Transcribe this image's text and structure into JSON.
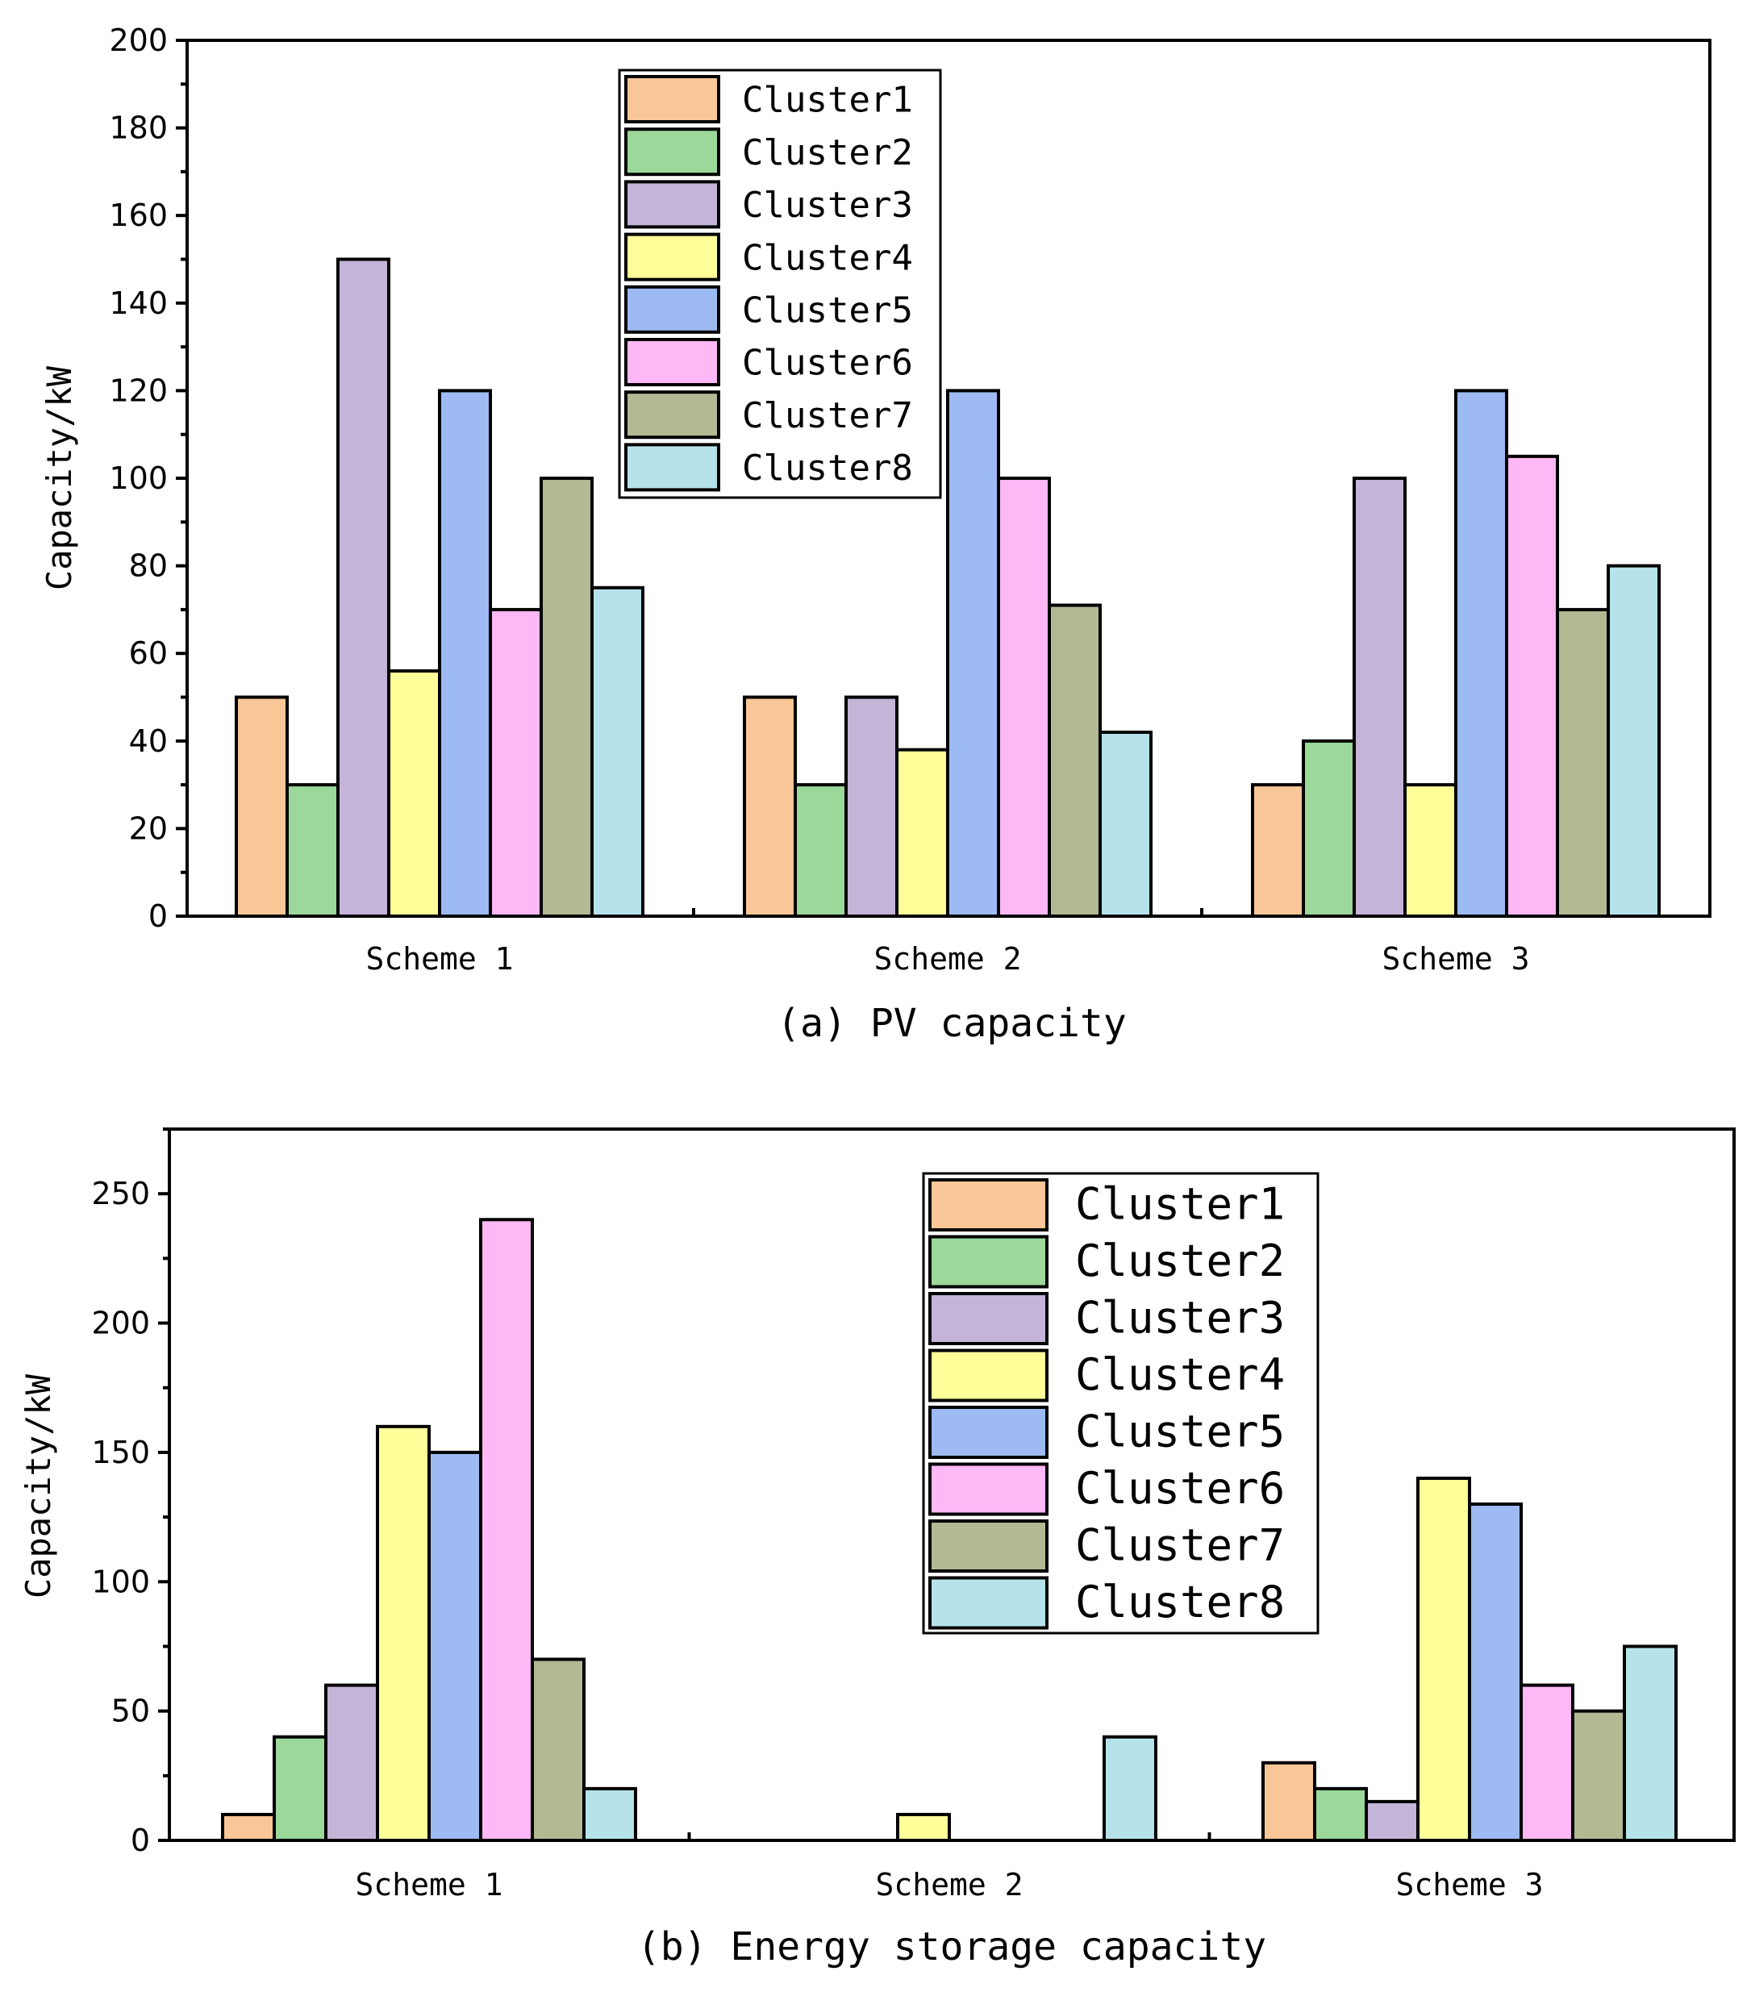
{
  "chart_data": [
    {
      "type": "bar",
      "caption": "(a) PV capacity",
      "ylabel": "Capacity/kW",
      "ylim": [
        0,
        200
      ],
      "yticks": [
        0,
        20,
        40,
        60,
        80,
        100,
        120,
        140,
        160,
        180,
        200
      ],
      "legend_position": "top-center",
      "categories": [
        "Scheme 1",
        "Scheme 2",
        "Scheme 3"
      ],
      "series": [
        {
          "name": "Cluster1",
          "color": "#F9C797",
          "values": [
            50,
            50,
            30
          ]
        },
        {
          "name": "Cluster2",
          "color": "#9BD89A",
          "values": [
            30,
            30,
            40
          ]
        },
        {
          "name": "Cluster3",
          "color": "#C4B4D8",
          "values": [
            150,
            50,
            100
          ]
        },
        {
          "name": "Cluster4",
          "color": "#FFFF99",
          "values": [
            56,
            38,
            30
          ]
        },
        {
          "name": "Cluster5",
          "color": "#9DBBF2",
          "values": [
            120,
            120,
            120
          ]
        },
        {
          "name": "Cluster6",
          "color": "#FDB8F5",
          "values": [
            70,
            100,
            105
          ]
        },
        {
          "name": "Cluster7",
          "color": "#B2B993",
          "values": [
            100,
            71,
            70
          ]
        },
        {
          "name": "Cluster8",
          "color": "#B6E3E9",
          "values": [
            75,
            42,
            80
          ]
        }
      ]
    },
    {
      "type": "bar",
      "caption": "(b) Energy storage capacity",
      "ylabel": "Capacity/kW",
      "ylim": [
        0,
        275
      ],
      "yticks": [
        0,
        50,
        100,
        150,
        200,
        250
      ],
      "legend_position": "top-right",
      "categories": [
        "Scheme 1",
        "Scheme 2",
        "Scheme 3"
      ],
      "series": [
        {
          "name": "Cluster1",
          "color": "#F9C797",
          "values": [
            10,
            0,
            30
          ]
        },
        {
          "name": "Cluster2",
          "color": "#9BD89A",
          "values": [
            40,
            0,
            20
          ]
        },
        {
          "name": "Cluster3",
          "color": "#C4B4D8",
          "values": [
            60,
            0,
            15
          ]
        },
        {
          "name": "Cluster4",
          "color": "#FFFF99",
          "values": [
            160,
            10,
            140
          ]
        },
        {
          "name": "Cluster5",
          "color": "#9DBBF2",
          "values": [
            150,
            0,
            130
          ]
        },
        {
          "name": "Cluster6",
          "color": "#FDB8F5",
          "values": [
            240,
            0,
            60
          ]
        },
        {
          "name": "Cluster7",
          "color": "#B2B993",
          "values": [
            70,
            0,
            50
          ]
        },
        {
          "name": "Cluster8",
          "color": "#B6E3E9",
          "values": [
            20,
            40,
            75
          ]
        }
      ]
    }
  ]
}
